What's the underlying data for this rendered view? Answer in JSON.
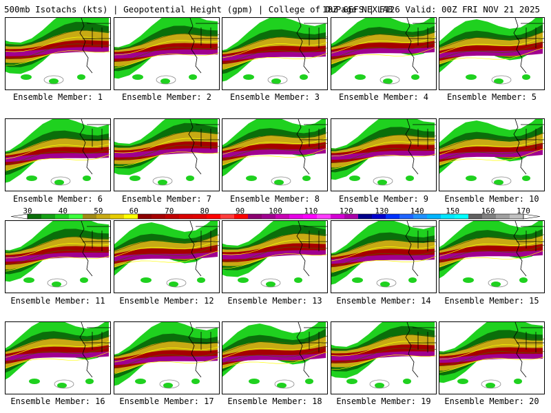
{
  "header": {
    "left": "500mb Isotachs (kts) | Geopotential Height (gpm) | College of DuPage NEXLAB",
    "right": "18Z GEFS | F126 Valid: 00Z FRI NOV 21 2025"
  },
  "members": [
    {
      "label": "Ensemble Member: 1",
      "variant": 0
    },
    {
      "label": "Ensemble Member: 2",
      "variant": 1
    },
    {
      "label": "Ensemble Member: 3",
      "variant": 2
    },
    {
      "label": "Ensemble Member: 4",
      "variant": 3
    },
    {
      "label": "Ensemble Member: 5",
      "variant": 4
    },
    {
      "label": "Ensemble Member: 6",
      "variant": 2
    },
    {
      "label": "Ensemble Member: 7",
      "variant": 0
    },
    {
      "label": "Ensemble Member: 8",
      "variant": 3
    },
    {
      "label": "Ensemble Member: 9",
      "variant": 1
    },
    {
      "label": "Ensemble Member: 10",
      "variant": 4
    },
    {
      "label": "Ensemble Member: 11",
      "variant": 1
    },
    {
      "label": "Ensemble Member: 12",
      "variant": 4
    },
    {
      "label": "Ensemble Member: 13",
      "variant": 0
    },
    {
      "label": "Ensemble Member: 14",
      "variant": 2
    },
    {
      "label": "Ensemble Member: 15",
      "variant": 3
    },
    {
      "label": "Ensemble Member: 16",
      "variant": 3
    },
    {
      "label": "Ensemble Member: 17",
      "variant": 2
    },
    {
      "label": "Ensemble Member: 18",
      "variant": 4
    },
    {
      "label": "Ensemble Member: 19",
      "variant": 0
    },
    {
      "label": "Ensemble Member: 20",
      "variant": 1
    }
  ],
  "colorbar": {
    "ticks": [
      "30",
      "40",
      "50",
      "60",
      "70",
      "80",
      "90",
      "100",
      "110",
      "120",
      "130",
      "140",
      "150",
      "160",
      "170"
    ],
    "colors": [
      "#0a6e0a",
      "#15a015",
      "#1fd11f",
      "#3cff3c",
      "#a08a14",
      "#c8aa14",
      "#e6cc00",
      "#ffff00",
      "#8b0000",
      "#a50000",
      "#c00000",
      "#d80000",
      "#e00000",
      "#ff0000",
      "#ff3c3c",
      "#ff0000",
      "#8b0070",
      "#a00090",
      "#c800b4",
      "#e600e6",
      "#ff00ff",
      "#ff3cff",
      "#d400d4",
      "#aa00aa",
      "#00008b",
      "#0000cd",
      "#0032ff",
      "#1e64ff",
      "#1e90ff",
      "#00b4ff",
      "#00e6ff",
      "#00ffff",
      "#606060",
      "#808080",
      "#a0a0a0",
      "#c0c0c0"
    ]
  }
}
